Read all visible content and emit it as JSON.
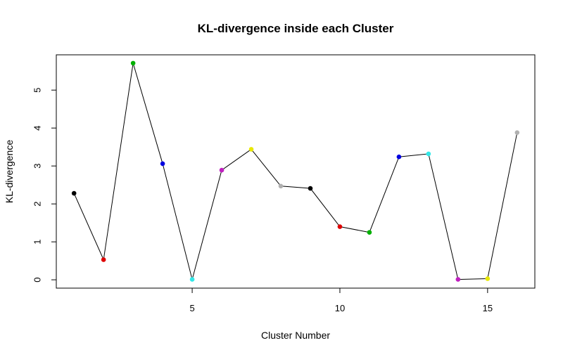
{
  "chart_data": {
    "type": "line",
    "title": "KL-divergence inside each Cluster",
    "xlabel": "Cluster Number",
    "ylabel": "KL-divergence",
    "xlim": [
      0.4,
      16.6
    ],
    "ylim": [
      -0.22,
      5.93
    ],
    "x_ticks": [
      5,
      10,
      15
    ],
    "y_ticks": [
      0,
      1,
      2,
      3,
      4,
      5
    ],
    "grid": false,
    "legend": "none",
    "series": [
      {
        "x": [
          1,
          2,
          3,
          4,
          5,
          6,
          7,
          8,
          9,
          10,
          11,
          12,
          13,
          14,
          15,
          16
        ],
        "values": [
          2.28,
          0.53,
          5.71,
          3.06,
          0.01,
          2.89,
          3.44,
          2.47,
          2.41,
          1.4,
          1.25,
          3.24,
          3.32,
          0.01,
          0.03,
          3.88
        ],
        "point_colors": [
          "#000000",
          "#df0000",
          "#00b000",
          "#0000e0",
          "#33e8e8",
          "#c020c0",
          "#e8e800",
          "#b0b0b0",
          "#000000",
          "#df0000",
          "#00b000",
          "#0000e0",
          "#33e8e8",
          "#c020c0",
          "#e8e800",
          "#b0b0b0"
        ],
        "line_color": "#000000"
      }
    ]
  }
}
